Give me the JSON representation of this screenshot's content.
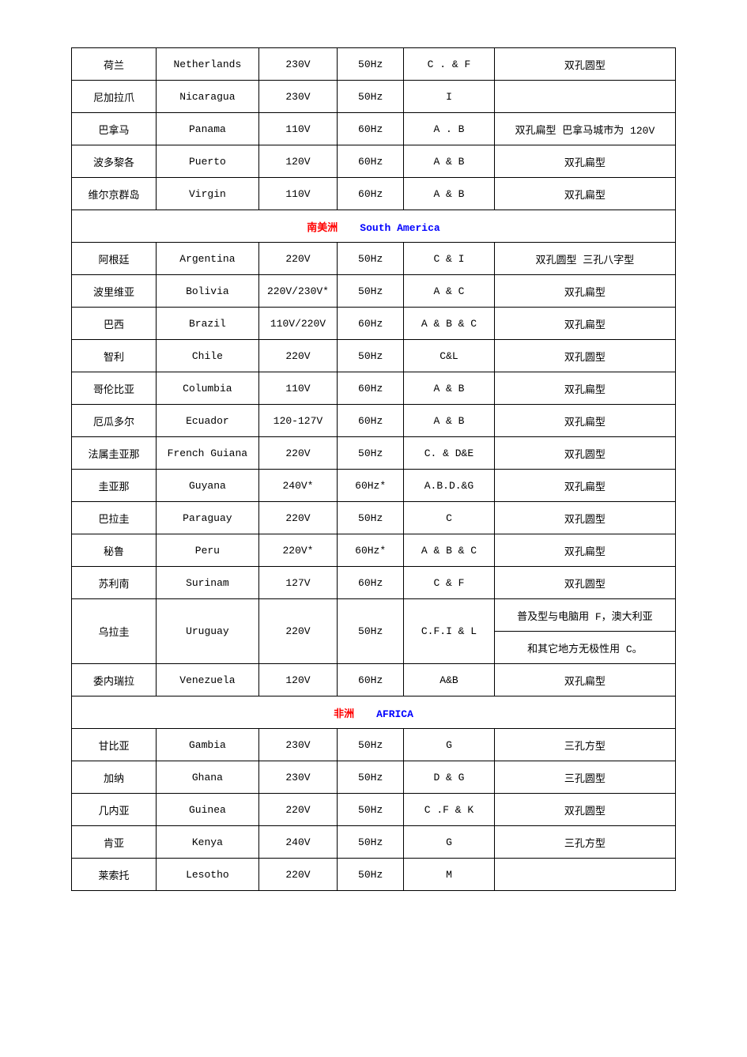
{
  "colors": {
    "border": "#000000",
    "bg": "#ffffff",
    "text": "#000000",
    "section_cn": "#ff0000",
    "section_en": "#0000ff"
  },
  "columns": [
    "country_cn",
    "country_en",
    "voltage",
    "freq",
    "plug",
    "note"
  ],
  "top_rows": [
    {
      "cn": "荷兰",
      "en": "Netherlands",
      "v": "230V",
      "hz": "50Hz",
      "plug": "C . & F",
      "note": "双孔圆型"
    },
    {
      "cn": "尼加拉爪",
      "en": "Nicaragua",
      "v": "230V",
      "hz": "50Hz",
      "plug": "I",
      "note": ""
    },
    {
      "cn": "巴拿马",
      "en": "Panama",
      "v": "110V",
      "hz": "60Hz",
      "plug": "A . B",
      "note": "双孔扁型 巴拿马城市为 120V"
    },
    {
      "cn": "波多黎各",
      "en": "Puerto",
      "v": "120V",
      "hz": "60Hz",
      "plug": "A & B",
      "note": "双孔扁型"
    },
    {
      "cn": "维尔京群岛",
      "en": "Virgin",
      "v": "110V",
      "hz": "60Hz",
      "plug": "A & B",
      "note": "双孔扁型"
    }
  ],
  "section_sa": {
    "cn": "南美洲",
    "en": "South America"
  },
  "sa_rows": [
    {
      "cn": "阿根廷",
      "en": "Argentina",
      "v": "220V",
      "hz": "50Hz",
      "plug": "C & I",
      "note": "双孔圆型 三孔八字型"
    },
    {
      "cn": "波里维亚",
      "en": "Bolivia",
      "v": "220V/230V*",
      "hz": "50Hz",
      "plug": "A & C",
      "note": "双孔扁型"
    },
    {
      "cn": "巴西",
      "en": "Brazil",
      "v": "110V/220V",
      "hz": "60Hz",
      "plug": "A & B & C",
      "note": "双孔扁型"
    },
    {
      "cn": "智利",
      "en": "Chile",
      "v": "220V",
      "hz": "50Hz",
      "plug": "C&L",
      "note": "双孔圆型"
    },
    {
      "cn": "哥伦比亚",
      "en": "Columbia",
      "v": "110V",
      "hz": "60Hz",
      "plug": "A & B",
      "note": "双孔扁型"
    },
    {
      "cn": "厄瓜多尔",
      "en": "Ecuador",
      "v": "120-127V",
      "hz": "60Hz",
      "plug": "A & B",
      "note": "双孔扁型"
    },
    {
      "cn": "法属圭亚那",
      "en": "French Guiana",
      "v": "220V",
      "hz": "50Hz",
      "plug": "C. & D&E",
      "note": "双孔圆型"
    },
    {
      "cn": "圭亚那",
      "en": "Guyana",
      "v": "240V*",
      "hz": "60Hz*",
      "plug": "A.B.D.&G",
      "note": "双孔扁型"
    },
    {
      "cn": "巴拉圭",
      "en": "Paraguay",
      "v": "220V",
      "hz": "50Hz",
      "plug": "C",
      "note": "双孔圆型"
    },
    {
      "cn": "秘鲁",
      "en": "Peru",
      "v": "220V*",
      "hz": "60Hz*",
      "plug": "A & B & C",
      "note": "双孔扁型"
    },
    {
      "cn": "苏利南",
      "en": "Surinam",
      "v": "127V",
      "hz": "60Hz",
      "plug": "C & F",
      "note": "双孔圆型"
    }
  ],
  "uruguay": {
    "cn": "乌拉圭",
    "en": "Uruguay",
    "v": "220V",
    "hz": "50Hz",
    "plug": "C.F.I & L",
    "note1": "普及型与电脑用 F，澳大利亚",
    "note2": "和其它地方无极性用 C。"
  },
  "sa_rows2": [
    {
      "cn": "委内瑞拉",
      "en": "Venezuela",
      "v": "120V",
      "hz": "60Hz",
      "plug": "A&B",
      "note": "双孔扁型"
    }
  ],
  "section_af": {
    "cn": "非洲",
    "en": "AFRICA"
  },
  "af_rows": [
    {
      "cn": "甘比亚",
      "en": "Gambia",
      "v": "230V",
      "hz": "50Hz",
      "plug": "G",
      "note": "三孔方型"
    },
    {
      "cn": "加纳",
      "en": "Ghana",
      "v": "230V",
      "hz": "50Hz",
      "plug": "D & G",
      "note": "三孔圆型"
    },
    {
      "cn": "几内亚",
      "en": "Guinea",
      "v": "220V",
      "hz": "50Hz",
      "plug": "C .F & K",
      "note": "双孔圆型"
    },
    {
      "cn": "肯亚",
      "en": "Kenya",
      "v": "240V",
      "hz": "50Hz",
      "plug": "G",
      "note": "三孔方型"
    },
    {
      "cn": "莱索托",
      "en": "Lesotho",
      "v": "220V",
      "hz": "50Hz",
      "plug": "M",
      "note": ""
    }
  ]
}
